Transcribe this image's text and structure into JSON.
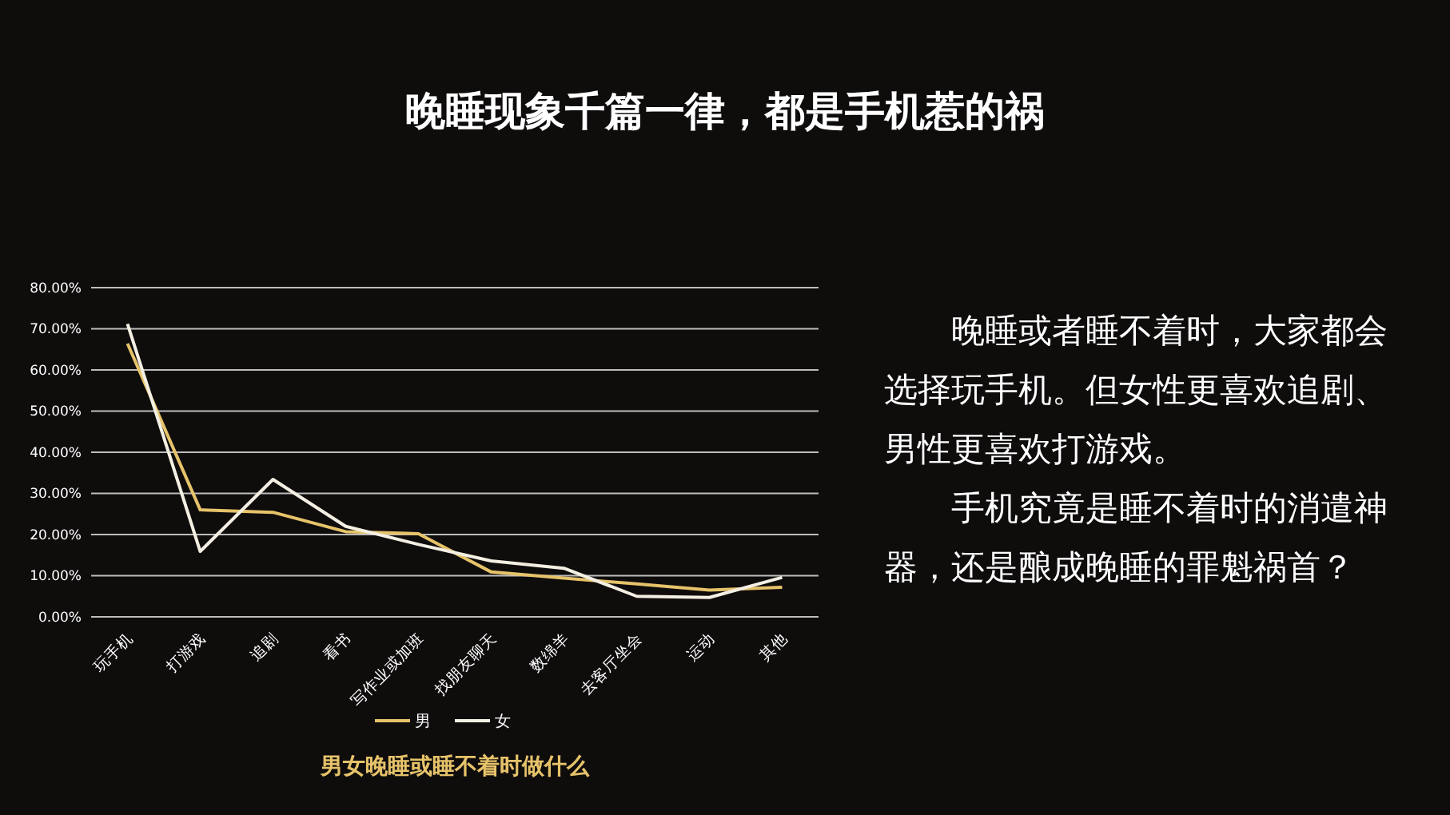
{
  "chart_data": {
    "type": "line",
    "title": "晚睡现象千篇一律，都是手机惹的祸",
    "subtitle": "男女晚睡或睡不着时做什么",
    "annotations": [
      "晚睡或者睡不着时，大家都会选择玩手机。但女性更喜欢追剧、男性更喜欢打游戏。",
      "手机究竟是睡不着时的消遣神器，还是酿成晚睡的罪魁祸首？"
    ],
    "categories": [
      "玩手机",
      "打游戏",
      "追剧",
      "看书",
      "写作业或加班",
      "找朋友聊天",
      "数绵羊",
      "去客厅坐会",
      "运动",
      "其他"
    ],
    "series": [
      {
        "name": "男",
        "color": "#e6c36a",
        "values": [
          66.4,
          26,
          25.4,
          20.7,
          20.2,
          10.9,
          9.4,
          8,
          6.5,
          7.2
        ]
      },
      {
        "name": "女",
        "color": "#f3efe2",
        "values": [
          71.2,
          15.9,
          33.4,
          22,
          17.6,
          13.6,
          11.8,
          5,
          4.7,
          9.6
        ]
      }
    ],
    "ylim": [
      0,
      80
    ],
    "yticks": [
      {
        "value": 0,
        "label": "0.00%"
      },
      {
        "value": 10,
        "label": "10.00%"
      },
      {
        "value": 20,
        "label": "20.00%"
      },
      {
        "value": 30,
        "label": "30.00%"
      },
      {
        "value": 40,
        "label": "40.00%"
      },
      {
        "value": 50,
        "label": "50.00%"
      },
      {
        "value": 60,
        "label": "60.00%"
      },
      {
        "value": 70,
        "label": "70.00%"
      },
      {
        "value": 80,
        "label": "80.00%"
      }
    ],
    "grid": "y",
    "legend": "bottom",
    "marker": "none",
    "line_style": "solid"
  }
}
